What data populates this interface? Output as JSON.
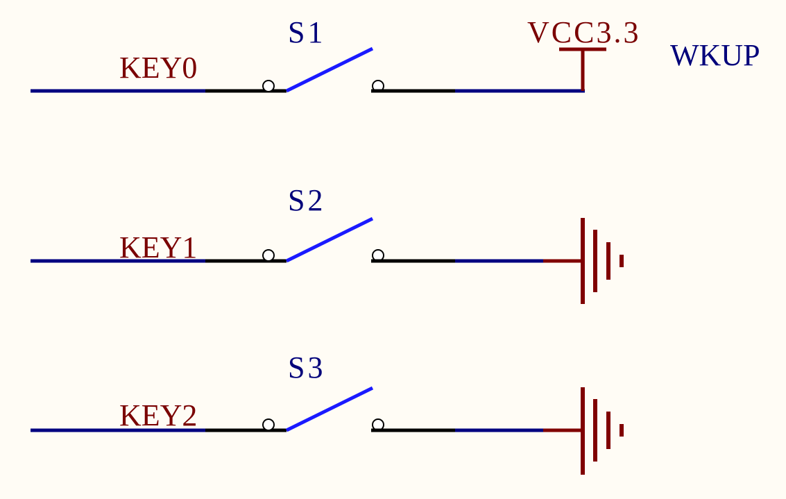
{
  "colors": {
    "background": "#fffcf5",
    "net_wire": "#000080",
    "pin_wire": "#000000",
    "switch_blade": "#1a1aff",
    "power_symbol": "#800000",
    "net_label": "#7a0000",
    "designator": "#00007a"
  },
  "power": {
    "vcc_label": "VCC3.3",
    "wkup_label": "WKUP"
  },
  "switches": [
    {
      "designator": "S1",
      "net": "KEY0",
      "terminal": "vcc"
    },
    {
      "designator": "S2",
      "net": "KEY1",
      "terminal": "ground"
    },
    {
      "designator": "S3",
      "net": "KEY2",
      "terminal": "ground"
    }
  ]
}
